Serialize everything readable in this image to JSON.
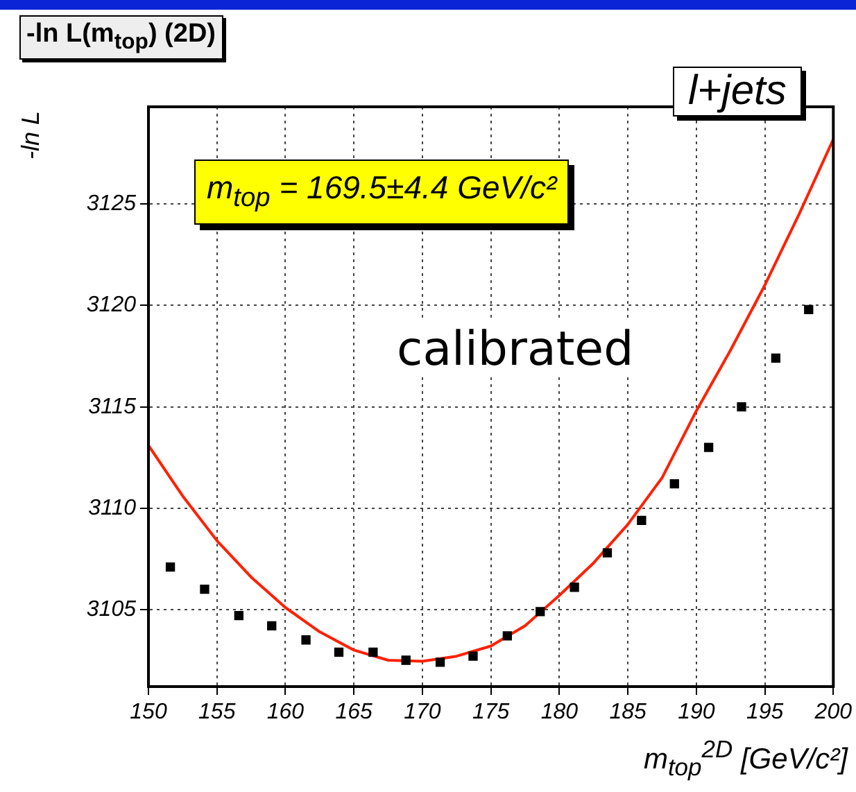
{
  "chart_data": {
    "type": "scatter",
    "title": "-ln L(m$_{top}$) (2D)",
    "xlabel": "m$_{top}$$^{2D}$ [GeV/c²]",
    "ylabel": "-ln L",
    "annotations": [
      "m$_{top}$ = 169.5±4.4 GeV/c²",
      "calibrated",
      "l+jets"
    ],
    "xlim": [
      150,
      200
    ],
    "xticks": [
      150,
      155,
      160,
      165,
      170,
      175,
      180,
      185,
      190,
      195,
      200
    ],
    "ylim": [
      3101.2,
      3129.8
    ],
    "yticks": [
      3105,
      3110,
      3115,
      3120,
      3125
    ],
    "grid": true,
    "legend": false,
    "series": [
      {
        "type": "scatter",
        "color": "#000000",
        "marker": "square",
        "x": [
          151.6,
          154.1,
          156.6,
          159.0,
          161.5,
          163.9,
          166.4,
          168.8,
          171.3,
          173.7,
          176.2,
          178.6,
          181.1,
          183.5,
          186.0,
          188.4,
          190.9,
          193.3,
          195.8,
          198.2
        ],
        "values": [
          3107.1,
          3106.0,
          3104.7,
          3104.2,
          3103.5,
          3102.9,
          3102.9,
          3102.5,
          3102.4,
          3102.7,
          3103.7,
          3104.9,
          3106.1,
          3107.8,
          3109.4,
          3111.2,
          3113.0,
          3115.0,
          3117.4,
          3119.8
        ]
      },
      {
        "type": "line",
        "color": "#ff2000",
        "marker": "none",
        "line_style": "solid",
        "x": [
          150,
          152.5,
          155,
          157.5,
          160,
          162.5,
          165,
          167.5,
          170,
          172.5,
          175,
          177.5,
          180,
          182.5,
          185,
          187.5,
          190,
          192.5,
          195,
          197.5,
          200
        ],
        "values": [
          3113.1,
          3110.6,
          3108.4,
          3106.6,
          3105.1,
          3103.9,
          3103.0,
          3102.5,
          3102.45,
          3102.7,
          3103.2,
          3104.2,
          3105.7,
          3107.3,
          3109.2,
          3111.5,
          3114.8,
          3117.8,
          3121.0,
          3124.5,
          3128.2
        ]
      }
    ]
  }
}
